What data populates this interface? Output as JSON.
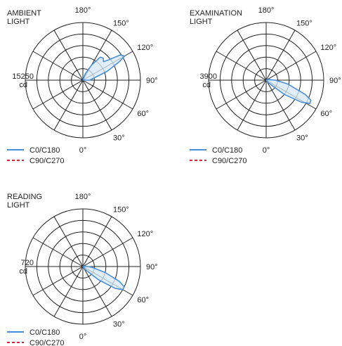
{
  "chart_data": [
    {
      "type": "polar",
      "title_lines": [
        "AMBIENT",
        "LIGHT"
      ],
      "scale_value": "15250",
      "scale_unit": "cd",
      "angle_labels": [
        "0°",
        "30°",
        "60°",
        "90°",
        "120°",
        "150°",
        "180°"
      ],
      "rings": 5,
      "legend": [
        {
          "label": "C0/C180",
          "color": "#4a90d9",
          "style": "solid"
        },
        {
          "label": "C90/C270",
          "color": "#e0203a",
          "style": "dashed"
        }
      ],
      "series": [
        {
          "name": "C0/C180",
          "theta_deg": [
            0,
            90,
            110,
            117,
            120,
            124,
            128,
            132,
            137,
            143,
            150,
            160,
            180
          ],
          "r": [
            0,
            0.12,
            0.45,
            0.72,
            0.84,
            0.78,
            0.58,
            0.48,
            0.52,
            0.5,
            0.3,
            0.12,
            0
          ]
        }
      ]
    },
    {
      "type": "polar",
      "title_lines": [
        "EXAMINATION",
        "LIGHT"
      ],
      "scale_value": "3900",
      "scale_unit": "cd",
      "angle_labels": [
        "0°",
        "30°",
        "60°",
        "90°",
        "120°",
        "150°",
        "180°"
      ],
      "rings": 5,
      "legend": [
        {
          "label": "C0/C180",
          "color": "#4a90d9",
          "style": "solid"
        },
        {
          "label": "C90/C270",
          "color": "#e0203a",
          "style": "dashed"
        }
      ],
      "series": [
        {
          "name": "C0/C180",
          "theta_deg": [
            0,
            40,
            52,
            58,
            62,
            66,
            70,
            80,
            90,
            100,
            120,
            150,
            180
          ],
          "r": [
            0,
            0.06,
            0.4,
            0.72,
            0.86,
            0.85,
            0.72,
            0.38,
            0.16,
            0.06,
            0.02,
            0,
            0
          ]
        }
      ]
    },
    {
      "type": "polar",
      "title_lines": [
        "READING",
        "LIGHT"
      ],
      "scale_value": "720",
      "scale_unit": "cd",
      "angle_labels": [
        "0°",
        "30°",
        "60°",
        "90°",
        "120°",
        "150°",
        "180°"
      ],
      "rings": 5,
      "legend": [
        {
          "label": "C0/C180",
          "color": "#4a90d9",
          "style": "solid"
        },
        {
          "label": "C90/C270",
          "color": "#e0203a",
          "style": "dashed"
        }
      ],
      "series": [
        {
          "name": "C0/C180",
          "theta_deg": [
            0,
            40,
            50,
            56,
            60,
            64,
            68,
            75,
            85,
            95,
            110,
            140,
            180
          ],
          "r": [
            0,
            0.08,
            0.36,
            0.68,
            0.8,
            0.8,
            0.68,
            0.4,
            0.16,
            0.06,
            0.02,
            0,
            0
          ]
        }
      ]
    }
  ]
}
